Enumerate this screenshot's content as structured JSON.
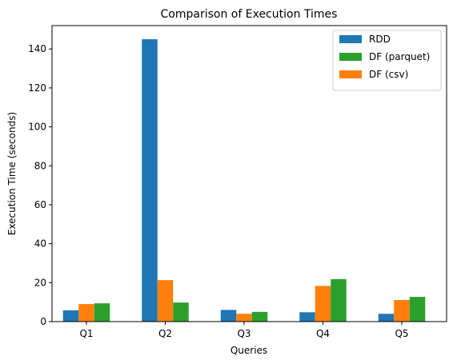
{
  "chart_data": {
    "type": "bar",
    "title": "Comparison of Execution Times",
    "xlabel": "Queries",
    "ylabel": "Execution Time (seconds)",
    "categories": [
      "Q1",
      "Q2",
      "Q3",
      "Q4",
      "Q5"
    ],
    "ylim": [
      0,
      152
    ],
    "yticks": [
      0,
      20,
      40,
      60,
      80,
      100,
      120,
      140
    ],
    "grid": false,
    "legend_position": "top-right",
    "series": [
      {
        "name": "RDD",
        "color": "#1f77b4",
        "values": [
          5.8,
          145.0,
          6.0,
          4.8,
          4.0
        ]
      },
      {
        "name": "DF (csv)",
        "color": "#ff7f0e",
        "values": [
          9.0,
          21.3,
          4.0,
          18.3,
          11.1
        ]
      },
      {
        "name": "DF (parquet)",
        "color": "#2ca02c",
        "values": [
          9.4,
          9.8,
          5.0,
          21.8,
          12.7
        ]
      }
    ],
    "plot_order": [
      0,
      2,
      1
    ]
  }
}
